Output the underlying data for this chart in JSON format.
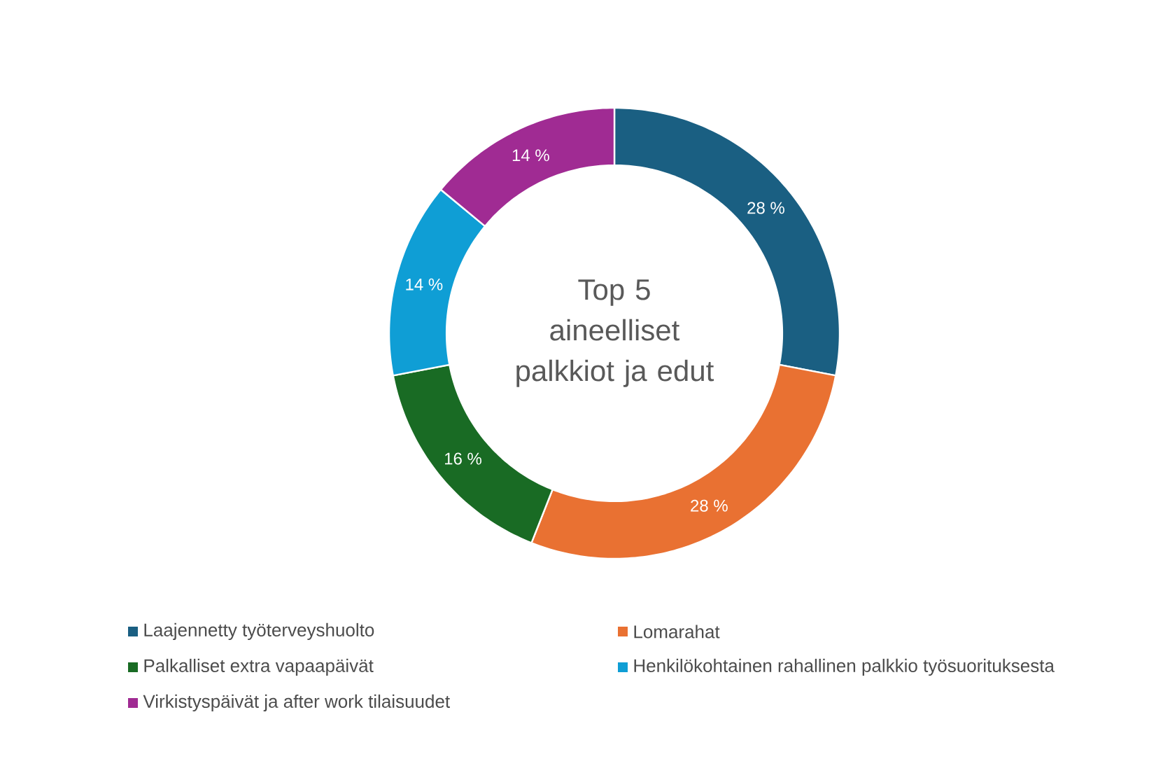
{
  "chart_data": {
    "type": "donut",
    "title": "Top 5 aineelliset palkkiot ja edut",
    "categories": [
      "Laajennetty työterveyshuolto",
      "Lomarahat",
      "Palkalliset extra vapaapäivät",
      "Henkilökohtainen rahallinen palkkio työsuorituksesta",
      "Virkistyspäivät ja after work tilaisuudet"
    ],
    "values": [
      28,
      28,
      16,
      14,
      14
    ],
    "value_labels": [
      "28 %",
      "28 %",
      "16 %",
      "14 %",
      "14 %"
    ],
    "colors": [
      "#1a5f82",
      "#e97132",
      "#196b24",
      "#0f9ed5",
      "#a02b93"
    ],
    "legend": "bottom"
  }
}
